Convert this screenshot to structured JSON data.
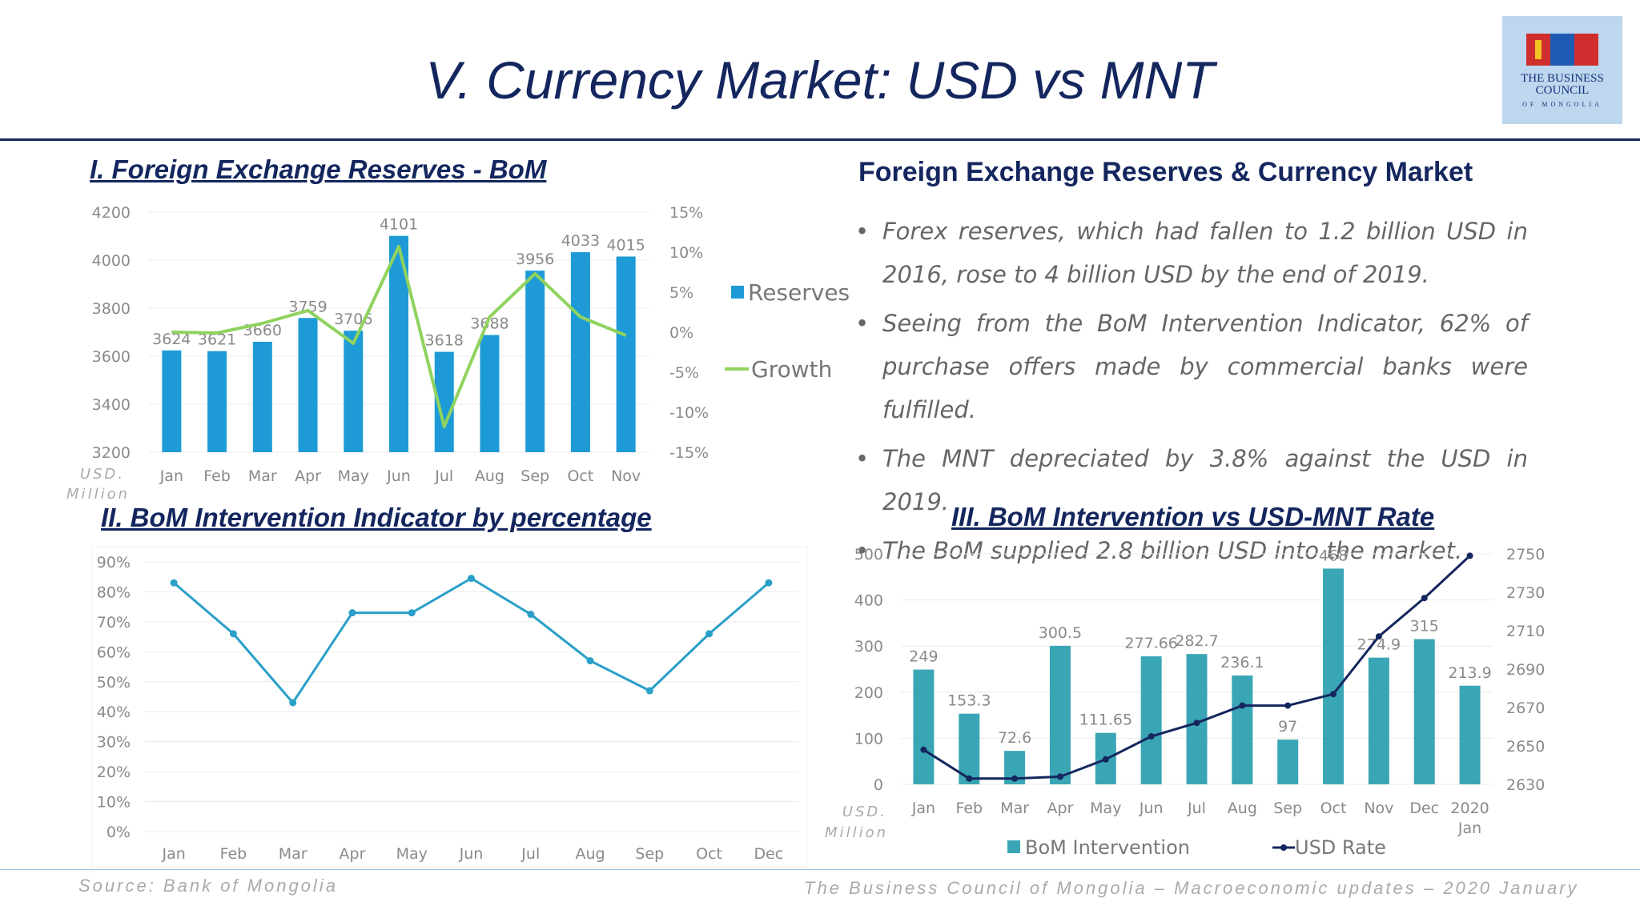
{
  "page": {
    "title": "V. Currency Market: USD vs MNT",
    "logo": {
      "line1": "THE BUSINESS",
      "line2": "COUNCIL",
      "line3": "OF MONGOLIA"
    },
    "source": "Source: Bank of Mongolia",
    "footer": "The Business Council of Mongolia – Macroeconomic updates – 2020 January"
  },
  "panel1": {
    "title": "I. Foreign Exchange Reserves - BoM"
  },
  "panel2": {
    "title": "II. BoM Intervention Indicator by percentage"
  },
  "panel3": {
    "title": "III. BoM Intervention vs USD-MNT Rate"
  },
  "right": {
    "heading": "Foreign Exchange Reserves & Currency Market",
    "bullets": [
      "Forex reserves, which had fallen to 1.2 billion USD in 2016, rose to 4 billion USD by the end of 2019.",
      "Seeing from the BoM Intervention Indicator, 62% of purchase offers made by commercial banks were fulfilled.",
      "The MNT depreciated by 3.8% against the USD in 2019.",
      "The BoM supplied 2.8 billion USD into the market."
    ]
  },
  "chart_data": [
    {
      "type": "bar",
      "title": "I. Foreign Exchange Reserves - BoM",
      "categories": [
        "Jan",
        "Feb",
        "Mar",
        "Apr",
        "May",
        "Jun",
        "Jul",
        "Aug",
        "Sep",
        "Oct",
        "Nov"
      ],
      "series": [
        {
          "name": "Reserves",
          "type": "bar",
          "axis": "left",
          "color": "#1e9bd7",
          "values": [
            3624,
            3621,
            3660,
            3759,
            3706,
            4101,
            3618,
            3688,
            3956,
            4033,
            4015
          ]
        },
        {
          "name": "Growth",
          "type": "line",
          "axis": "right",
          "color": "#8fd35f",
          "values": [
            0.0,
            -0.1,
            1.1,
            2.7,
            -1.4,
            10.7,
            -11.8,
            1.9,
            7.3,
            1.9,
            -0.4
          ]
        }
      ],
      "ylabel": "USD. Million",
      "ylim": [
        3200,
        4200
      ],
      "yticks": [
        "4200",
        "4000",
        "3800",
        "3600",
        "3400",
        "3200"
      ],
      "y2lim": [
        -15,
        15
      ],
      "y2ticks": [
        "15%",
        "10%",
        "5%",
        "0%",
        "-5%",
        "-10%",
        "-15%"
      ],
      "legend": "right"
    },
    {
      "type": "line",
      "title": "II. BoM Intervention Indicator by percentage",
      "categories": [
        "Jan",
        "Feb",
        "Mar",
        "Apr",
        "May",
        "Jun",
        "Jul",
        "Aug",
        "Sep",
        "Oct",
        "Dec"
      ],
      "series": [
        {
          "color": "#2a9fc8",
          "values": [
            83,
            66,
            43,
            73,
            73,
            84.5,
            72.5,
            57,
            47,
            66,
            83
          ]
        }
      ],
      "ylim": [
        0,
        90
      ],
      "yticks": [
        "90%",
        "80%",
        "70%",
        "60%",
        "50%",
        "40%",
        "30%",
        "20%",
        "10%",
        "0%"
      ]
    },
    {
      "type": "bar",
      "title": "III. BoM Intervention vs USD-MNT Rate",
      "categories": [
        "Jan",
        "Feb",
        "Mar",
        "Apr",
        "May",
        "Jun",
        "Jul",
        "Aug",
        "Sep",
        "Oct",
        "Nov",
        "Dec",
        "2020 Jan"
      ],
      "series": [
        {
          "name": "BoM Intervention",
          "type": "bar",
          "axis": "left",
          "color": "#3aa6b5",
          "values": [
            249,
            153.3,
            72.6,
            300.5,
            111.65,
            277.66,
            282.7,
            236.1,
            97,
            468,
            274.9,
            315,
            213.9
          ],
          "labels": [
            "249",
            "153.3",
            "72.6",
            "300.5",
            "111.65",
            "277.66",
            "282.7",
            "236.1",
            "97",
            "468",
            "274.9",
            "315",
            "213.9"
          ]
        },
        {
          "name": "USD Rate",
          "type": "line",
          "axis": "right",
          "color": "#14265e",
          "values": [
            2648,
            2633,
            2633,
            2634,
            2643,
            2655,
            2662,
            2671,
            2671,
            2677,
            2707,
            2727,
            2749
          ]
        }
      ],
      "ylabel": "USD. Million",
      "ylim": [
        0,
        500
      ],
      "yticks": [
        "500",
        "400",
        "300",
        "200",
        "100",
        "0"
      ],
      "y2lim": [
        2630,
        2750
      ],
      "y2ticks": [
        "2750",
        "2730",
        "2710",
        "2690",
        "2670",
        "2650",
        "2630"
      ],
      "legend": "bottom"
    }
  ]
}
